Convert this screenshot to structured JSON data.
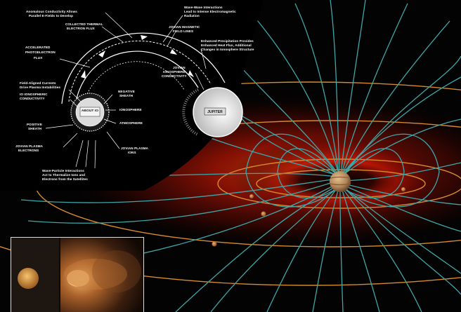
{
  "labels": {
    "anomalous_conductivity": "Anomalous Conductivity Allows",
    "anomalous_conductivity_2": "Parallel E-Fields to Develop",
    "collected_thermal": "COLLECTED THERMAL",
    "collected_thermal_2": "ELECTRON FLUX",
    "accelerated_photoelectron": "ACCELERATED",
    "accelerated_photoelectron_2": "PHOTOELECTRON",
    "accelerated_photoelectron_3": "FLUX",
    "wave_wave": "Wave-Wave Interactions",
    "wave_wave_2": "Lead to Intense Electromagnetic",
    "wave_wave_3": "Radiation",
    "jovian_magnetic": "JOVIAN MAGNETIC",
    "jovian_magnetic_2": "FIELD LINES",
    "enhanced_precipitation": "Enhanced Precipitation Provides",
    "enhanced_precipitation_2": "Enhanced Heat Flux, Additional",
    "enhanced_precipitation_3": "Changes in Ionosphere Structure",
    "jovian_ionosphere": "JOVIAN",
    "jovian_ionosphere_2": "IONOSPHERE",
    "jovian_ionosphere_3": "CONDUCTIVITY",
    "field_aligned": "Field-Aligned Currents",
    "field_aligned_2": "Drive Plasma Instabilities",
    "io_ionospheric": "IO IONOSPHERIC",
    "io_ionospheric_2": "CONDUCTIVITY",
    "negative_sheath": "NEGATIVE",
    "negative_sheath_2": "SHEATH",
    "ionosphere": "IONOSPHERE",
    "atmosphere": "ATMOSPHERE",
    "positive_sheath": "POSITIVE",
    "positive_sheath_2": "SHEATH",
    "jovian_plasma_electrons": "JOVIAN PLASMA",
    "jovian_plasma_electrons_2": "ELECTRONS",
    "jovian_plasma_ions": "JOVIAN PLASMA",
    "jovian_plasma_ions_2": "IONS",
    "wave_particle": "Wave-Particle Interactions",
    "wave_particle_2": "Act to Thermalize Ions and",
    "wave_particle_3": "Electrons from the Satellites",
    "io_body": "ABOUT IO",
    "jupiter_body": "JUPITER"
  },
  "colors": {
    "field_line": "#3fa6a8",
    "orbit": "#d88a2c",
    "torus_core": "#ff2a00",
    "background": "#030303"
  },
  "icons": {
    "jupiter": "planet-icon",
    "moons": "moon-icon"
  }
}
